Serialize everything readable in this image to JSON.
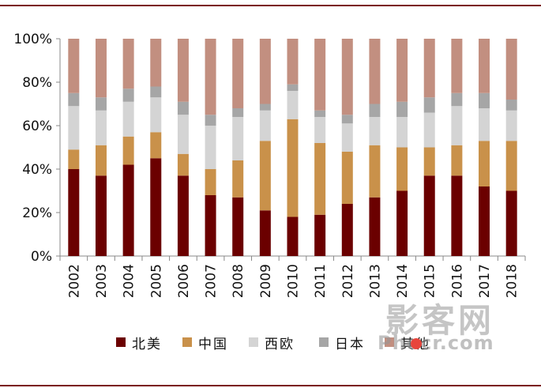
{
  "chart_data": {
    "type": "bar",
    "stacked": true,
    "categories": [
      "2002",
      "2003",
      "2004",
      "2005",
      "2006",
      "2007",
      "2008",
      "2009",
      "2010",
      "2011",
      "2012",
      "2013",
      "2014",
      "2015",
      "2016",
      "2017",
      "2018"
    ],
    "series": [
      {
        "name": "北美",
        "color": "#6b0000",
        "values": [
          40,
          37,
          42,
          45,
          37,
          28,
          27,
          21,
          18,
          19,
          24,
          27,
          30,
          37,
          37,
          32,
          30
        ]
      },
      {
        "name": "中国",
        "color": "#c9914a",
        "values": [
          9,
          14,
          13,
          12,
          10,
          12,
          17,
          32,
          45,
          33,
          24,
          24,
          20,
          13,
          14,
          21,
          23
        ]
      },
      {
        "name": "西欧",
        "color": "#d4d4d4",
        "values": [
          20,
          16,
          16,
          16,
          18,
          20,
          20,
          14,
          13,
          12,
          13,
          13,
          14,
          16,
          18,
          15,
          14
        ]
      },
      {
        "name": "日本",
        "color": "#a6a6a6",
        "values": [
          6,
          6,
          6,
          5,
          6,
          5,
          4,
          3,
          3,
          3,
          4,
          6,
          7,
          7,
          6,
          7,
          5
        ]
      },
      {
        "name": "其他",
        "color": "#c28f80",
        "values": [
          25,
          27,
          23,
          22,
          29,
          35,
          32,
          30,
          21,
          33,
          35,
          30,
          29,
          27,
          25,
          25,
          28
        ]
      }
    ],
    "ylim": [
      0,
      100
    ],
    "yticks": [
      "0%",
      "20%",
      "40%",
      "60%",
      "80%",
      "100%"
    ],
    "legend_position": "bottom",
    "grid": false
  },
  "watermark": {
    "line1": "影客网",
    "line2": "Phocr.com"
  }
}
